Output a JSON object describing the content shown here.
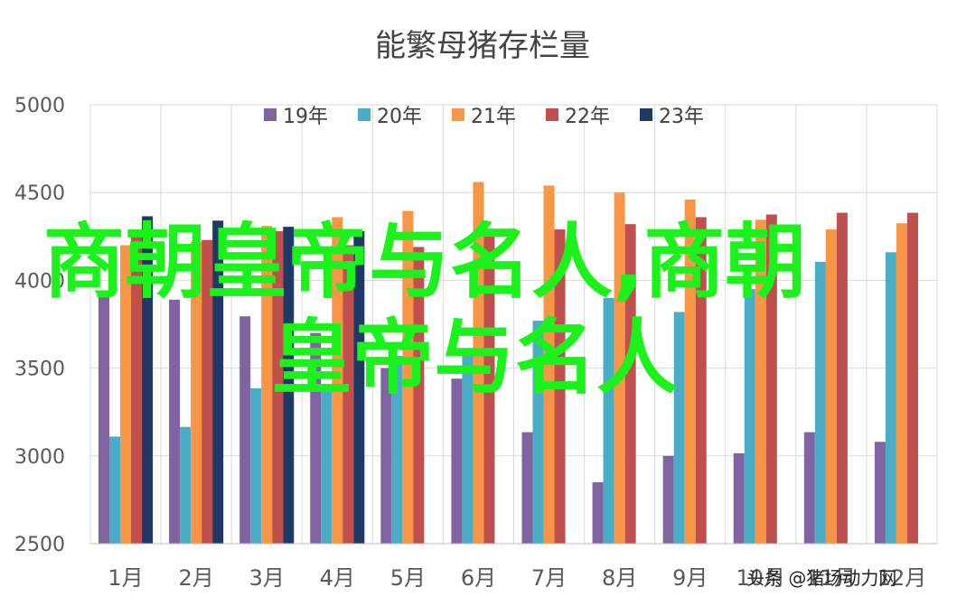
{
  "chart_data": {
    "type": "bar",
    "title": "能繁母猪存栏量",
    "xlabel": "",
    "ylabel": "",
    "ylim": [
      2500,
      5000
    ],
    "yticks": [
      2500,
      3000,
      3500,
      4000,
      4500,
      5000
    ],
    "grid": true,
    "legend_position": "top",
    "categories": [
      "1月",
      "2月",
      "3月",
      "4月",
      "5月",
      "6月",
      "7月",
      "8月",
      "9月",
      "10月",
      "11月",
      "12月"
    ],
    "series": [
      {
        "name": "19年",
        "color": "#8064a2",
        "values": [
          3940,
          3890,
          3795,
          3700,
          3500,
          3440,
          3135,
          2850,
          3000,
          3015,
          3135,
          3080
        ]
      },
      {
        "name": "20年",
        "color": "#4bacc6",
        "values": [
          3110,
          3165,
          3385,
          3400,
          3570,
          3570,
          3770,
          3900,
          3820,
          3950,
          4105,
          4160
        ]
      },
      {
        "name": "21年",
        "color": "#f79646",
        "values": [
          4200,
          4220,
          4310,
          4360,
          4395,
          4560,
          4540,
          4500,
          4460,
          4345,
          4290,
          4325
        ]
      },
      {
        "name": "22年",
        "color": "#c0504d",
        "values": [
          4290,
          4230,
          4280,
          4200,
          4190,
          4270,
          4290,
          4320,
          4360,
          4375,
          4385,
          4385
        ]
      },
      {
        "name": "23年",
        "color": "#1f3864",
        "values": [
          4365,
          4340,
          4305,
          4280,
          null,
          null,
          null,
          null,
          null,
          null,
          null,
          null
        ]
      }
    ]
  },
  "overlay": {
    "watermark_line1": "商朝皇帝与名人,商朝",
    "watermark_line2": "皇帝与名人",
    "watermark_color": "#1bf21b",
    "credit": "头条 @猪场动力网"
  }
}
